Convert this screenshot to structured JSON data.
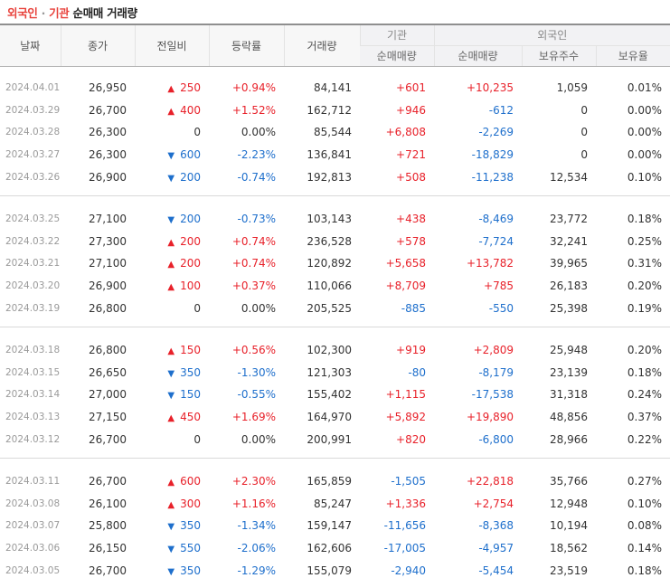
{
  "title": {
    "part1": "외국인",
    "separator": "·",
    "part2": "기관",
    "part3": "순매매 거래량"
  },
  "headers": {
    "date": "날짜",
    "close": "종가",
    "change": "전일비",
    "rate": "등락률",
    "volume": "거래량",
    "institution": "기관",
    "foreign": "외국인",
    "inst_net": "순매매량",
    "foreign_net": "순매매량",
    "holdings": "보유주수",
    "ratio": "보유율"
  },
  "colors": {
    "up": "#e8212a",
    "down": "#1e6fcc",
    "title_accent": "#e8413b"
  },
  "groups": [
    [
      {
        "date": "2024.04.01",
        "close": "26,950",
        "dir": "up",
        "change": "250",
        "rate": "+0.94%",
        "volume": "84,141",
        "inst": "+601",
        "foreign": "+10,235",
        "holdings": "1,059",
        "ratio": "0.01%"
      },
      {
        "date": "2024.03.29",
        "close": "26,700",
        "dir": "up",
        "change": "400",
        "rate": "+1.52%",
        "volume": "162,712",
        "inst": "+946",
        "foreign": "-612",
        "holdings": "0",
        "ratio": "0.00%"
      },
      {
        "date": "2024.03.28",
        "close": "26,300",
        "dir": "none",
        "change": "0",
        "rate": "0.00%",
        "volume": "85,544",
        "inst": "+6,808",
        "foreign": "-2,269",
        "holdings": "0",
        "ratio": "0.00%"
      },
      {
        "date": "2024.03.27",
        "close": "26,300",
        "dir": "down",
        "change": "600",
        "rate": "-2.23%",
        "volume": "136,841",
        "inst": "+721",
        "foreign": "-18,829",
        "holdings": "0",
        "ratio": "0.00%"
      },
      {
        "date": "2024.03.26",
        "close": "26,900",
        "dir": "down",
        "change": "200",
        "rate": "-0.74%",
        "volume": "192,813",
        "inst": "+508",
        "foreign": "-11,238",
        "holdings": "12,534",
        "ratio": "0.10%"
      }
    ],
    [
      {
        "date": "2024.03.25",
        "close": "27,100",
        "dir": "down",
        "change": "200",
        "rate": "-0.73%",
        "volume": "103,143",
        "inst": "+438",
        "foreign": "-8,469",
        "holdings": "23,772",
        "ratio": "0.18%"
      },
      {
        "date": "2024.03.22",
        "close": "27,300",
        "dir": "up",
        "change": "200",
        "rate": "+0.74%",
        "volume": "236,528",
        "inst": "+578",
        "foreign": "-7,724",
        "holdings": "32,241",
        "ratio": "0.25%"
      },
      {
        "date": "2024.03.21",
        "close": "27,100",
        "dir": "up",
        "change": "200",
        "rate": "+0.74%",
        "volume": "120,892",
        "inst": "+5,658",
        "foreign": "+13,782",
        "holdings": "39,965",
        "ratio": "0.31%"
      },
      {
        "date": "2024.03.20",
        "close": "26,900",
        "dir": "up",
        "change": "100",
        "rate": "+0.37%",
        "volume": "110,066",
        "inst": "+8,709",
        "foreign": "+785",
        "holdings": "26,183",
        "ratio": "0.20%"
      },
      {
        "date": "2024.03.19",
        "close": "26,800",
        "dir": "none",
        "change": "0",
        "rate": "0.00%",
        "volume": "205,525",
        "inst": "-885",
        "foreign": "-550",
        "holdings": "25,398",
        "ratio": "0.19%"
      }
    ],
    [
      {
        "date": "2024.03.18",
        "close": "26,800",
        "dir": "up",
        "change": "150",
        "rate": "+0.56%",
        "volume": "102,300",
        "inst": "+919",
        "foreign": "+2,809",
        "holdings": "25,948",
        "ratio": "0.20%"
      },
      {
        "date": "2024.03.15",
        "close": "26,650",
        "dir": "down",
        "change": "350",
        "rate": "-1.30%",
        "volume": "121,303",
        "inst": "-80",
        "foreign": "-8,179",
        "holdings": "23,139",
        "ratio": "0.18%"
      },
      {
        "date": "2024.03.14",
        "close": "27,000",
        "dir": "down",
        "change": "150",
        "rate": "-0.55%",
        "volume": "155,402",
        "inst": "+1,115",
        "foreign": "-17,538",
        "holdings": "31,318",
        "ratio": "0.24%"
      },
      {
        "date": "2024.03.13",
        "close": "27,150",
        "dir": "up",
        "change": "450",
        "rate": "+1.69%",
        "volume": "164,970",
        "inst": "+5,892",
        "foreign": "+19,890",
        "holdings": "48,856",
        "ratio": "0.37%"
      },
      {
        "date": "2024.03.12",
        "close": "26,700",
        "dir": "none",
        "change": "0",
        "rate": "0.00%",
        "volume": "200,991",
        "inst": "+820",
        "foreign": "-6,800",
        "holdings": "28,966",
        "ratio": "0.22%"
      }
    ],
    [
      {
        "date": "2024.03.11",
        "close": "26,700",
        "dir": "up",
        "change": "600",
        "rate": "+2.30%",
        "volume": "165,859",
        "inst": "-1,505",
        "foreign": "+22,818",
        "holdings": "35,766",
        "ratio": "0.27%"
      },
      {
        "date": "2024.03.08",
        "close": "26,100",
        "dir": "up",
        "change": "300",
        "rate": "+1.16%",
        "volume": "85,247",
        "inst": "+1,336",
        "foreign": "+2,754",
        "holdings": "12,948",
        "ratio": "0.10%"
      },
      {
        "date": "2024.03.07",
        "close": "25,800",
        "dir": "down",
        "change": "350",
        "rate": "-1.34%",
        "volume": "159,147",
        "inst": "-11,656",
        "foreign": "-8,368",
        "holdings": "10,194",
        "ratio": "0.08%"
      },
      {
        "date": "2024.03.06",
        "close": "26,150",
        "dir": "down",
        "change": "550",
        "rate": "-2.06%",
        "volume": "162,606",
        "inst": "-17,005",
        "foreign": "-4,957",
        "holdings": "18,562",
        "ratio": "0.14%"
      },
      {
        "date": "2024.03.05",
        "close": "26,700",
        "dir": "down",
        "change": "350",
        "rate": "-1.29%",
        "volume": "155,079",
        "inst": "-2,940",
        "foreign": "-5,454",
        "holdings": "23,519",
        "ratio": "0.18%"
      }
    ]
  ]
}
